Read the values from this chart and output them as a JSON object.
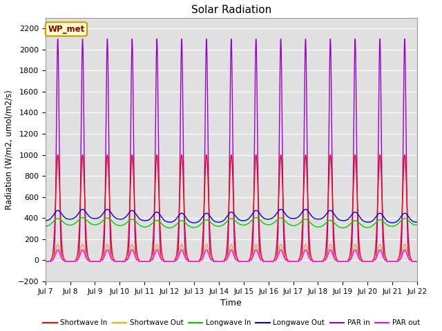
{
  "title": "Solar Radiation",
  "xlabel": "Time",
  "ylabel": "Radiation (W/m2, umol/m2/s)",
  "ylim": [
    -200,
    2300
  ],
  "xlim_days": [
    7,
    22
  ],
  "yticks": [
    -200,
    0,
    200,
    400,
    600,
    800,
    1000,
    1200,
    1400,
    1600,
    1800,
    2000,
    2200
  ],
  "xtick_labels": [
    "Jul 7",
    "Jul 8",
    "Jul 9",
    "Jul 10",
    "Jul 11",
    "Jul 12",
    "Jul 13",
    "Jul 14",
    "Jul 15",
    "Jul 16",
    "Jul 17",
    "Jul 18",
    "Jul 19",
    "Jul 20",
    "Jul 21",
    "Jul 22"
  ],
  "background_color": "#e0e0e0",
  "grid_color": "#ffffff",
  "series": {
    "shortwave_in": {
      "color": "#ff0000",
      "label": "Shortwave In"
    },
    "shortwave_out": {
      "color": "#ffa500",
      "label": "Shortwave Out"
    },
    "longwave_in": {
      "color": "#00cc00",
      "label": "Longwave In"
    },
    "longwave_out": {
      "color": "#0000dd",
      "label": "Longwave Out"
    },
    "par_in": {
      "color": "#9900cc",
      "label": "PAR in"
    },
    "par_out": {
      "color": "#ff00ff",
      "label": "PAR out"
    }
  },
  "annotation_text": "WP_met",
  "annotation_bg": "#ffffcc",
  "annotation_border": "#cc9900"
}
